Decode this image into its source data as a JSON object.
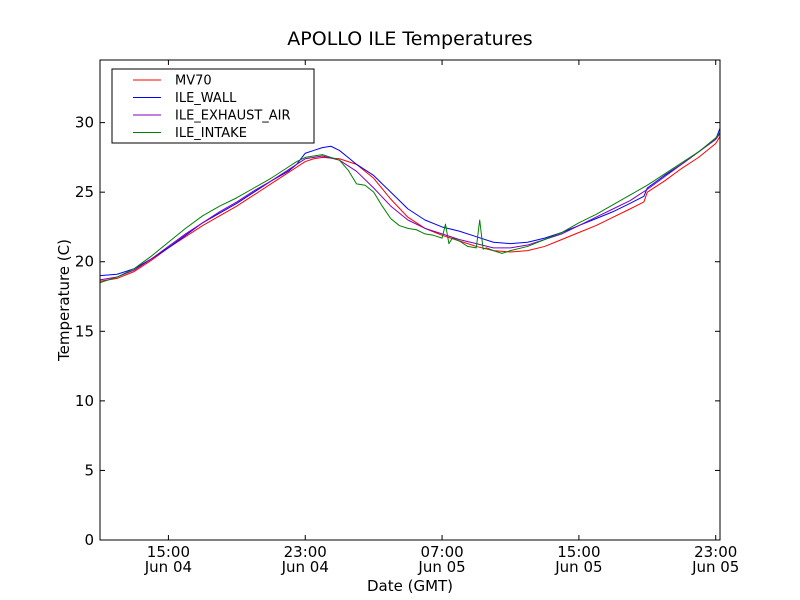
{
  "chart_data": {
    "type": "line",
    "title": "APOLLO ILE Temperatures",
    "xlabel": "Date (GMT)",
    "ylabel": "Temperature (C)",
    "x_unit": "hours since Jun 04 00:00 GMT",
    "xlim": [
      11.0,
      47.25
    ],
    "ylim": [
      0,
      34.5
    ],
    "yticks": [
      0,
      5,
      10,
      15,
      20,
      25,
      30
    ],
    "xticks": [
      {
        "x": 15,
        "line1": "15:00",
        "line2": "Jun 04"
      },
      {
        "x": 23,
        "line1": "23:00",
        "line2": "Jun 04"
      },
      {
        "x": 31,
        "line1": "07:00",
        "line2": "Jun 05"
      },
      {
        "x": 39,
        "line1": "15:00",
        "line2": "Jun 05"
      },
      {
        "x": 47,
        "line1": "23:00",
        "line2": "Jun 05"
      }
    ],
    "grid": false,
    "legend_position": "top-left",
    "series": [
      {
        "name": "MV70",
        "color": "#ff0000",
        "x": [
          11,
          12,
          13,
          14,
          15,
          16,
          17,
          18,
          19,
          20,
          21,
          22,
          22.5,
          23,
          23.5,
          24,
          25,
          26,
          27,
          28,
          29,
          30,
          31,
          32,
          33,
          34,
          35,
          36,
          37,
          38,
          39,
          40,
          41,
          42,
          42.8,
          43,
          44,
          45,
          46,
          47,
          47.25
        ],
        "values": [
          18.6,
          18.8,
          19.3,
          20.1,
          21.0,
          21.8,
          22.6,
          23.3,
          24.0,
          24.8,
          25.6,
          26.4,
          26.8,
          27.2,
          27.4,
          27.5,
          27.4,
          27.0,
          26.0,
          24.5,
          23.2,
          22.4,
          21.9,
          21.5,
          21.1,
          20.8,
          20.7,
          20.8,
          21.1,
          21.6,
          22.1,
          22.6,
          23.2,
          23.8,
          24.3,
          25.0,
          25.8,
          26.7,
          27.5,
          28.5,
          29.0
        ]
      },
      {
        "name": "ILE_WALL",
        "color": "#0000ff",
        "x": [
          11,
          12,
          13,
          14,
          15,
          16,
          17,
          18,
          19,
          20,
          21,
          22,
          22.5,
          23,
          23.5,
          24,
          24.5,
          25,
          25.5,
          26,
          27,
          28,
          29,
          30,
          31,
          32,
          33,
          34,
          35,
          36,
          37,
          38,
          39,
          40,
          41,
          42,
          42.8,
          43,
          44,
          45,
          46,
          47,
          47.25
        ],
        "values": [
          19.0,
          19.1,
          19.5,
          20.2,
          21.0,
          21.9,
          22.8,
          23.5,
          24.2,
          25.0,
          25.8,
          26.5,
          27.0,
          27.8,
          28.0,
          28.2,
          28.3,
          28.0,
          27.5,
          27.0,
          26.2,
          25.0,
          23.8,
          23.0,
          22.5,
          22.2,
          21.8,
          21.4,
          21.3,
          21.4,
          21.7,
          22.1,
          22.6,
          23.1,
          23.6,
          24.2,
          24.7,
          25.3,
          26.2,
          27.0,
          27.9,
          28.8,
          29.6
        ]
      },
      {
        "name": "ILE_EXHAUST_AIR",
        "color": "#8000c0",
        "x": [
          11,
          12,
          13,
          14,
          15,
          16,
          17,
          18,
          19,
          20,
          21,
          22,
          22.5,
          23,
          23.5,
          24,
          25,
          26,
          27,
          28,
          29,
          30,
          31,
          32,
          33,
          34,
          35,
          36,
          37,
          38,
          39,
          40,
          41,
          42,
          43,
          44,
          45,
          46,
          47,
          47.25
        ],
        "values": [
          18.7,
          18.9,
          19.4,
          20.2,
          21.1,
          22.0,
          22.8,
          23.6,
          24.3,
          25.1,
          25.8,
          26.6,
          27.0,
          27.4,
          27.5,
          27.6,
          27.3,
          26.5,
          25.3,
          24.0,
          23.0,
          22.4,
          22.0,
          21.6,
          21.3,
          21.0,
          21.0,
          21.2,
          21.6,
          22.0,
          22.6,
          23.2,
          23.8,
          24.4,
          25.2,
          26.1,
          27.0,
          27.9,
          28.8,
          29.2
        ]
      },
      {
        "name": "ILE_INTAKE",
        "color": "#008000",
        "x": [
          11,
          12,
          13,
          14,
          15,
          16,
          17,
          18,
          19,
          20,
          21,
          22,
          22.5,
          23,
          23.5,
          24,
          25,
          25.5,
          26,
          26.5,
          27,
          27.5,
          28,
          28.5,
          29,
          29.5,
          30,
          30.5,
          31,
          31.2,
          31.4,
          31.6,
          32,
          32.5,
          33,
          33.2,
          33.4,
          33.6,
          34,
          34.5,
          35,
          36,
          37,
          38,
          39,
          40,
          41,
          42,
          43,
          44,
          45,
          46,
          47,
          47.25
        ],
        "values": [
          18.5,
          18.9,
          19.5,
          20.4,
          21.4,
          22.4,
          23.3,
          24.0,
          24.6,
          25.3,
          26.0,
          26.8,
          27.2,
          27.5,
          27.6,
          27.7,
          27.3,
          26.6,
          25.6,
          25.5,
          25.0,
          24.0,
          23.1,
          22.6,
          22.4,
          22.3,
          22.0,
          21.9,
          21.7,
          22.7,
          21.3,
          21.7,
          21.5,
          21.1,
          21.0,
          23.0,
          20.9,
          21.0,
          20.8,
          20.6,
          20.8,
          21.1,
          21.6,
          22.1,
          22.8,
          23.4,
          24.1,
          24.8,
          25.5,
          26.3,
          27.1,
          27.9,
          28.9,
          29.3
        ]
      }
    ]
  }
}
